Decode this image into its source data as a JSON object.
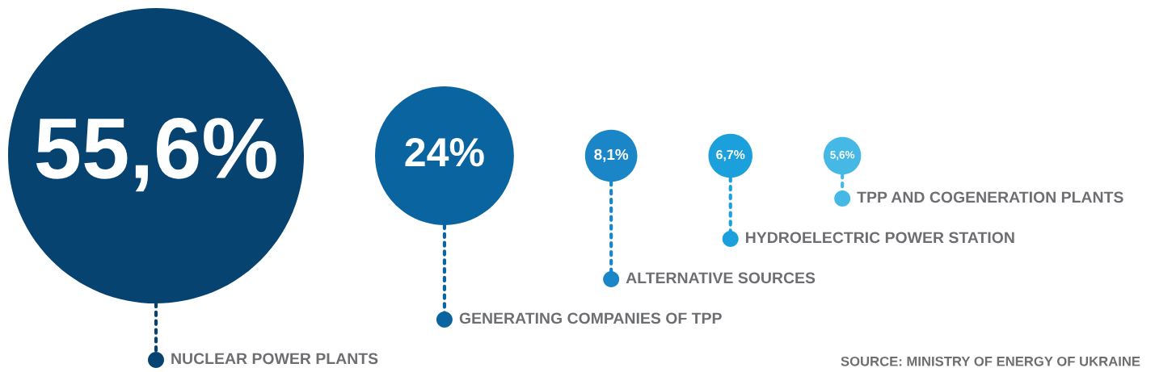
{
  "chart_data": {
    "type": "other",
    "categories": [
      "NUCLEAR POWER PLANTS",
      "GENERATING COMPANIES OF TPP",
      "ALTERNATIVE SOURCES",
      "HYDROELECTRIC POWER STATION",
      "TPP AND COGENERATION PLANTS"
    ],
    "values": [
      55.6,
      24,
      8.1,
      6.7,
      5.6
    ],
    "value_labels": [
      "55,6%",
      "24%",
      "8,1%",
      "6,7%",
      "5,6%"
    ],
    "colors": [
      "#074370",
      "#0a64a0",
      "#1a86c8",
      "#1ba0dc",
      "#45b8e6"
    ],
    "annotations": [
      "SOURCE: MINISTRY OF ENERGY OF UKRAINE"
    ]
  }
}
